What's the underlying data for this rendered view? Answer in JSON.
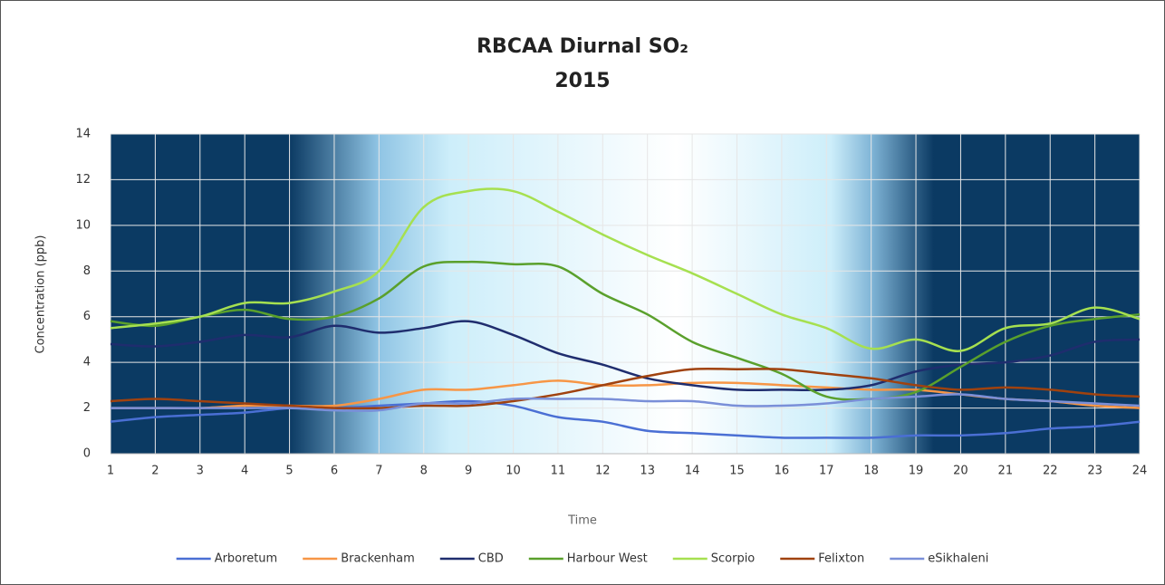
{
  "chart_data": {
    "type": "line",
    "title": "RBCAA Diurnal SO₂",
    "subtitle": "2015",
    "x_label": "Time",
    "y_label": "Concentration (ppb)",
    "x": [
      1,
      2,
      3,
      4,
      5,
      6,
      7,
      8,
      9,
      10,
      11,
      12,
      13,
      14,
      15,
      16,
      17,
      18,
      19,
      20,
      21,
      22,
      23,
      24
    ],
    "xlim": [
      1,
      24
    ],
    "xticks": [
      1,
      2,
      3,
      4,
      5,
      6,
      7,
      8,
      9,
      10,
      11,
      12,
      13,
      14,
      15,
      16,
      17,
      18,
      19,
      20,
      21,
      22,
      23,
      24
    ],
    "ylim": [
      0,
      14
    ],
    "yticks": [
      0,
      2,
      4,
      6,
      8,
      10,
      12,
      14
    ],
    "grid": true,
    "legend": "bottom",
    "series": [
      {
        "name": "Arboretum",
        "color": "#4a6fd4",
        "values": [
          1.4,
          1.6,
          1.7,
          1.8,
          2.0,
          2.0,
          2.1,
          2.2,
          2.3,
          2.1,
          1.6,
          1.4,
          1.0,
          0.9,
          0.8,
          0.7,
          0.7,
          0.7,
          0.8,
          0.8,
          0.9,
          1.1,
          1.2,
          1.4
        ]
      },
      {
        "name": "Brackenham",
        "color": "#f79646",
        "values": [
          2.0,
          2.0,
          2.0,
          2.1,
          2.1,
          2.1,
          2.4,
          2.8,
          2.8,
          3.0,
          3.2,
          3.0,
          3.0,
          3.1,
          3.1,
          3.0,
          2.9,
          2.8,
          2.8,
          2.6,
          2.4,
          2.3,
          2.1,
          2.0
        ]
      },
      {
        "name": "CBD",
        "color": "#1f2d6e",
        "values": [
          4.8,
          4.7,
          4.9,
          5.2,
          5.1,
          5.6,
          5.3,
          5.5,
          5.8,
          5.2,
          4.4,
          3.9,
          3.3,
          3.0,
          2.8,
          2.8,
          2.8,
          3.0,
          3.6,
          3.9,
          4.0,
          4.3,
          4.9,
          5.0
        ]
      },
      {
        "name": "Harbour West",
        "color": "#5aa02c",
        "values": [
          5.8,
          5.6,
          6.0,
          6.3,
          5.9,
          6.0,
          6.8,
          8.2,
          8.4,
          8.3,
          8.2,
          7.0,
          6.1,
          4.9,
          4.2,
          3.5,
          2.5,
          2.4,
          2.7,
          3.8,
          4.9,
          5.6,
          5.9,
          6.1
        ]
      },
      {
        "name": "Scorpio",
        "color": "#a6e050",
        "values": [
          5.5,
          5.7,
          6.0,
          6.6,
          6.6,
          7.1,
          8.0,
          10.8,
          11.5,
          11.5,
          10.6,
          9.6,
          8.7,
          7.9,
          7.0,
          6.1,
          5.5,
          4.6,
          5.0,
          4.5,
          5.5,
          5.7,
          6.4,
          5.9
        ]
      },
      {
        "name": "Felixton",
        "color": "#a0420f",
        "values": [
          2.3,
          2.4,
          2.3,
          2.2,
          2.1,
          2.0,
          2.0,
          2.1,
          2.1,
          2.3,
          2.6,
          3.0,
          3.4,
          3.7,
          3.7,
          3.7,
          3.5,
          3.3,
          3.0,
          2.8,
          2.9,
          2.8,
          2.6,
          2.5
        ]
      },
      {
        "name": "eSikhaleni",
        "color": "#7a8fd8",
        "values": [
          2.0,
          2.0,
          2.0,
          2.0,
          2.0,
          1.9,
          1.9,
          2.2,
          2.2,
          2.4,
          2.4,
          2.4,
          2.3,
          2.3,
          2.1,
          2.1,
          2.2,
          2.4,
          2.5,
          2.6,
          2.4,
          2.3,
          2.2,
          2.1
        ]
      }
    ]
  }
}
